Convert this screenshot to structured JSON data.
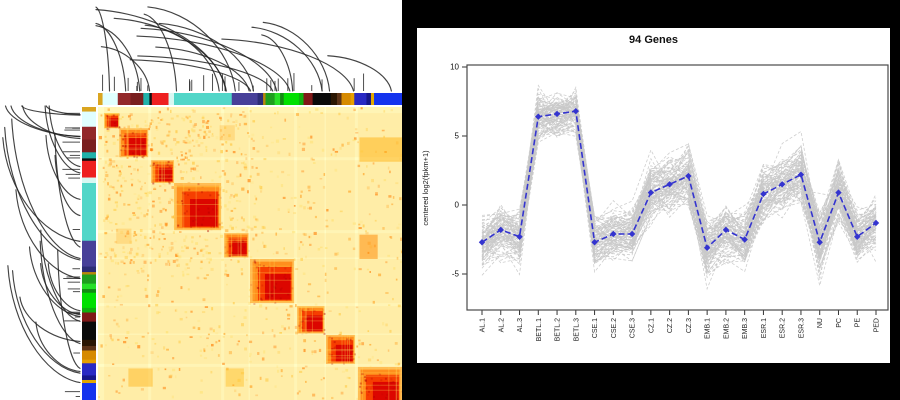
{
  "figure": {
    "background": "#000000",
    "description": "Two-panel gene expression figure: clustered heatmap with dendrograms (left), cluster expression profile plot (right)"
  },
  "chart_data": [
    {
      "type": "heatmap",
      "name": "gene-correlation-clustered-heatmap",
      "bg": "#FFFCC4",
      "has_top_dendrogram": true,
      "has_left_dendrogram": true,
      "annotation_segments": [
        {
          "color": "#DAA520",
          "f": 0.015
        },
        {
          "color": "#E0FFFF",
          "f": 0.05
        },
        {
          "color": "#93282a",
          "f": 0.042
        },
        {
          "color": "#7a1f1f",
          "f": 0.042
        },
        {
          "color": "#20B2AA",
          "f": 0.02
        },
        {
          "color": "#101010",
          "f": 0.008
        },
        {
          "color": "#EE2020",
          "f": 0.055
        },
        {
          "color": "#D8F8F2",
          "f": 0.018
        },
        {
          "color": "#52D6C8",
          "f": 0.19
        },
        {
          "color": "#474099",
          "f": 0.085
        },
        {
          "color": "#2d2d75",
          "f": 0.018
        },
        {
          "color": "#B8860B",
          "f": 0.008
        },
        {
          "color": "#1f9e1f",
          "f": 0.03
        },
        {
          "color": "#28e028",
          "f": 0.018
        },
        {
          "color": "#128a12",
          "f": 0.012
        },
        {
          "color": "#00E000",
          "f": 0.05
        },
        {
          "color": "#0faf0f",
          "f": 0.015
        },
        {
          "color": "#801818",
          "f": 0.03
        },
        {
          "color": "#0a0a0a",
          "f": 0.06
        },
        {
          "color": "#2a1602",
          "f": 0.02
        },
        {
          "color": "#5C3317",
          "f": 0.015
        },
        {
          "color": "#D68A00",
          "f": 0.03
        },
        {
          "color": "#E8A000",
          "f": 0.012
        },
        {
          "color": "#2929c4",
          "f": 0.04
        },
        {
          "color": "#16168a",
          "f": 0.015
        },
        {
          "color": "#E2A900",
          "f": 0.01
        },
        {
          "color": "#1433EE",
          "f": 0.092
        }
      ],
      "diagonal_blocks": [
        {
          "p": 0.02,
          "s": 0.05
        },
        {
          "p": 0.07,
          "s": 0.095
        },
        {
          "p": 0.175,
          "s": 0.075
        },
        {
          "p": 0.25,
          "s": 0.155
        },
        {
          "p": 0.415,
          "s": 0.08
        },
        {
          "p": 0.5,
          "s": 0.145
        },
        {
          "p": 0.655,
          "s": 0.09
        },
        {
          "p": 0.75,
          "s": 0.095
        },
        {
          "p": 0.855,
          "s": 0.145
        }
      ],
      "off_diagonal_patches": [
        {
          "x": 0.86,
          "y": 0.1,
          "w": 0.14,
          "h": 0.08,
          "c": "#FFAA00",
          "o": 0.45
        },
        {
          "x": 0.86,
          "y": 0.42,
          "w": 0.06,
          "h": 0.08,
          "c": "#FF8800",
          "o": 0.5
        },
        {
          "x": 0.1,
          "y": 0.86,
          "w": 0.08,
          "h": 0.06,
          "c": "#FFAA00",
          "o": 0.4
        },
        {
          "x": 0.42,
          "y": 0.86,
          "w": 0.06,
          "h": 0.06,
          "c": "#FFB300",
          "o": 0.35
        },
        {
          "x": 0.06,
          "y": 0.4,
          "w": 0.05,
          "h": 0.05,
          "c": "#FFC04D",
          "o": 0.4
        },
        {
          "x": 0.4,
          "y": 0.06,
          "w": 0.05,
          "h": 0.05,
          "c": "#FFC04D",
          "o": 0.4
        }
      ],
      "block_palette": [
        "#FFB84D",
        "#FF8C1A",
        "#F53A00",
        "#D90000"
      ],
      "speckle_palette": [
        "#FFE070",
        "#FFC840",
        "#FFA020",
        "#FF7A00"
      ],
      "dendrogram_color": "#222222"
    },
    {
      "type": "line",
      "title": "94 Genes",
      "ylabel": "centered log2(fpkm+1)",
      "n_genes": 94,
      "ylim": [
        -7.6,
        10.1
      ],
      "yticks": [
        "10",
        "5",
        "0",
        "-5"
      ],
      "ytick_values": [
        10,
        5,
        0,
        -5
      ],
      "categories": [
        "AL.1",
        "AL.2",
        "AL.3",
        "BETL.1",
        "BETL.2",
        "BETL.3",
        "CSE.1",
        "CSE.2",
        "CSE.3",
        "CZ.1",
        "CZ.2",
        "CZ.3",
        "EMB.1",
        "EMB.2",
        "EMB.3",
        "ESR.1",
        "ESR.2",
        "ESR.3",
        "NU",
        "PC",
        "PE",
        "PED"
      ],
      "series": [
        {
          "name": "cluster-centroid",
          "color": "#3434cf",
          "style": "dashed",
          "values": [
            -2.7,
            -1.8,
            -2.3,
            6.4,
            6.6,
            6.8,
            -2.7,
            -2.1,
            -2.1,
            0.9,
            1.5,
            2.1,
            -3.1,
            -1.8,
            -2.5,
            0.8,
            1.5,
            2.2,
            -2.7,
            0.9,
            -2.3,
            -1.3
          ]
        },
        {
          "name": "individual-gene-profiles",
          "color": "#c9c9c9",
          "count": 94,
          "style": "dashed"
        }
      ],
      "gene_spread": [
        1.4,
        1.4,
        1.4,
        1.15,
        1.15,
        1.15,
        1.3,
        1.3,
        1.3,
        1.8,
        1.8,
        1.8,
        1.5,
        1.5,
        1.5,
        1.7,
        1.7,
        1.7,
        1.8,
        1.7,
        1.5,
        1.3
      ],
      "axis_color": "#4a4a4a",
      "legend_position": "none",
      "grid": false
    }
  ]
}
